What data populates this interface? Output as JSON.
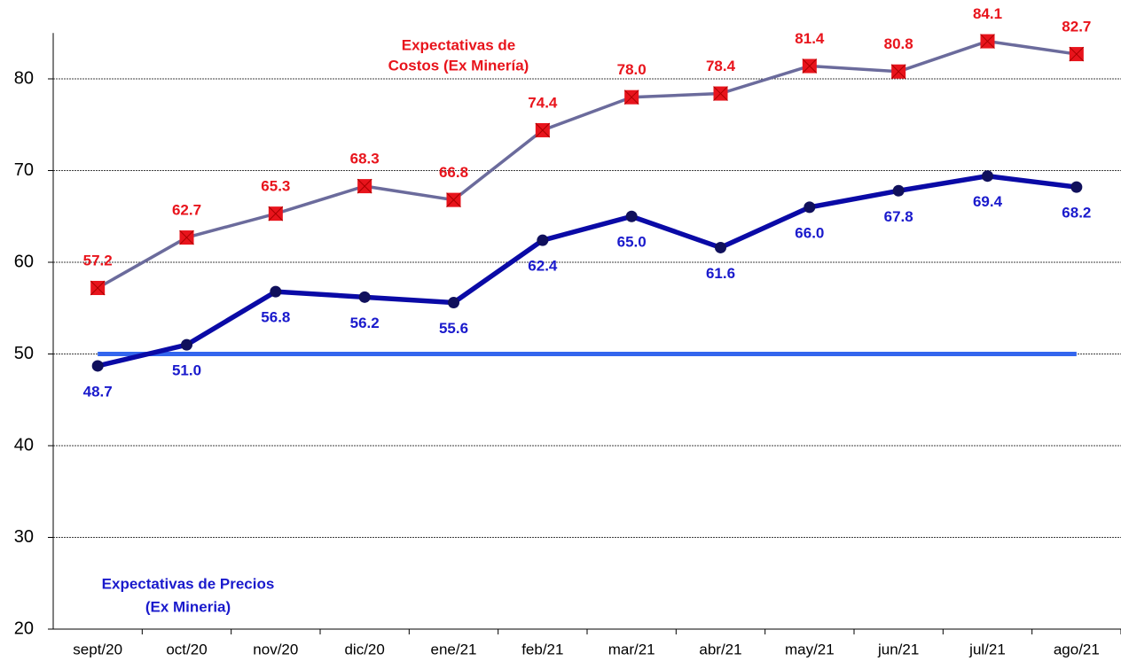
{
  "chart_data": {
    "type": "line",
    "categories": [
      "sept/20",
      "oct/20",
      "nov/20",
      "dic/20",
      "ene/21",
      "feb/21",
      "mar/21",
      "abr/21",
      "may/21",
      "jun/21",
      "jul/21",
      "ago/21"
    ],
    "series": [
      {
        "label_lines": [
          "Expectativas de",
          "Costos (Ex Minería)"
        ],
        "color": "#6b6b9c",
        "marker_color": "#e8141c",
        "label_color": "#e8141c",
        "label_position": "above",
        "values": [
          57.2,
          62.7,
          65.3,
          68.3,
          66.8,
          74.4,
          78.0,
          78.4,
          81.4,
          80.8,
          84.1,
          82.7
        ],
        "value_labels": [
          "57.2",
          "62.7",
          "65.3",
          "68.3",
          "66.8",
          "74.4",
          "78.0",
          "78.4",
          "81.4",
          "80.8",
          "84.1",
          "82.7"
        ]
      },
      {
        "label_lines": [
          "Expectativas de Precios",
          "(Ex Mineria)"
        ],
        "color": "#0a0aa6",
        "marker_color": "#10105c",
        "label_color": "#1a1acc",
        "label_position": "below",
        "values": [
          48.7,
          51.0,
          56.8,
          56.2,
          55.6,
          62.4,
          65.0,
          61.6,
          66.0,
          67.8,
          69.4,
          68.2
        ],
        "value_labels": [
          "48.7",
          "51.0",
          "56.8",
          "56.2",
          "55.6",
          "62.4",
          "65.0",
          "61.6",
          "66.0",
          "67.8",
          "69.4",
          "68.2"
        ]
      }
    ],
    "reference_line": {
      "value": 50,
      "color": "#3366ee"
    },
    "ylim": [
      20,
      85
    ],
    "yticks": [
      20,
      30,
      40,
      50,
      60,
      70,
      80
    ],
    "grid": true
  }
}
